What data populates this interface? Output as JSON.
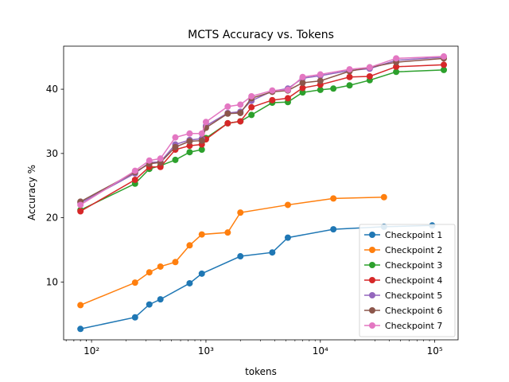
{
  "chart_data": {
    "type": "line",
    "title": "MCTS Accuracy vs. Tokens",
    "xlabel": "tokens",
    "ylabel": "Accuracy %",
    "xscale": "log",
    "xlim": [
      57,
      160000
    ],
    "ylim": [
      1.0,
      46.7
    ],
    "xticks": [
      {
        "value": 100,
        "label": "10²"
      },
      {
        "value": 1000,
        "label": "10³"
      },
      {
        "value": 10000,
        "label": "10⁴"
      },
      {
        "value": 100000,
        "label": "10⁵"
      }
    ],
    "yticks": [
      10,
      20,
      30,
      40
    ],
    "legend_position": "lower-right",
    "grid": false,
    "series": [
      {
        "name": "Checkpoint 1",
        "color": "#1f77b4",
        "points": [
          [
            80,
            2.7
          ],
          [
            240,
            4.5
          ],
          [
            320,
            6.5
          ],
          [
            400,
            7.3
          ],
          [
            720,
            9.8
          ],
          [
            920,
            11.3
          ],
          [
            2000,
            14.0
          ],
          [
            3800,
            14.6
          ],
          [
            5200,
            16.9
          ],
          [
            13000,
            18.2
          ],
          [
            36000,
            18.6
          ],
          [
            95000,
            18.8
          ]
        ]
      },
      {
        "name": "Checkpoint 2",
        "color": "#ff7f0e",
        "points": [
          [
            80,
            6.4
          ],
          [
            240,
            9.9
          ],
          [
            320,
            11.5
          ],
          [
            400,
            12.4
          ],
          [
            540,
            13.1
          ],
          [
            720,
            15.7
          ],
          [
            920,
            17.4
          ],
          [
            1550,
            17.7
          ],
          [
            2000,
            20.8
          ],
          [
            5200,
            22.0
          ],
          [
            13000,
            23.0
          ],
          [
            36000,
            23.2
          ]
        ]
      },
      {
        "name": "Checkpoint 3",
        "color": "#2ca02c",
        "points": [
          [
            80,
            21.2
          ],
          [
            240,
            25.3
          ],
          [
            320,
            27.6
          ],
          [
            400,
            28.1
          ],
          [
            540,
            29.0
          ],
          [
            720,
            30.2
          ],
          [
            920,
            30.6
          ],
          [
            1000,
            32.4
          ],
          [
            1550,
            34.7
          ],
          [
            2000,
            35.0
          ],
          [
            2500,
            36.0
          ],
          [
            3800,
            37.9
          ],
          [
            5200,
            38.0
          ],
          [
            7000,
            39.5
          ],
          [
            10000,
            39.9
          ],
          [
            13000,
            40.1
          ],
          [
            18000,
            40.6
          ],
          [
            27000,
            41.4
          ],
          [
            46000,
            42.7
          ],
          [
            120000,
            43.0
          ]
        ]
      },
      {
        "name": "Checkpoint 4",
        "color": "#d62728",
        "points": [
          [
            80,
            21.0
          ],
          [
            240,
            25.9
          ],
          [
            320,
            27.9
          ],
          [
            400,
            27.9
          ],
          [
            540,
            30.6
          ],
          [
            720,
            31.2
          ],
          [
            920,
            31.4
          ],
          [
            1000,
            32.2
          ],
          [
            1550,
            34.7
          ],
          [
            2000,
            35.0
          ],
          [
            2500,
            37.2
          ],
          [
            3800,
            38.3
          ],
          [
            5200,
            38.6
          ],
          [
            7000,
            40.2
          ],
          [
            10000,
            40.7
          ],
          [
            18000,
            41.9
          ],
          [
            27000,
            42.0
          ],
          [
            46000,
            43.5
          ],
          [
            120000,
            43.8
          ]
        ]
      },
      {
        "name": "Checkpoint 5",
        "color": "#9467bd",
        "points": [
          [
            80,
            22.3
          ],
          [
            240,
            26.9
          ],
          [
            320,
            28.6
          ],
          [
            400,
            28.7
          ],
          [
            540,
            31.4
          ],
          [
            720,
            32.1
          ],
          [
            920,
            32.3
          ],
          [
            1000,
            34.3
          ],
          [
            1550,
            36.3
          ],
          [
            2000,
            36.5
          ],
          [
            2500,
            38.2
          ],
          [
            3800,
            39.7
          ],
          [
            5200,
            40.1
          ],
          [
            7000,
            41.7
          ],
          [
            10000,
            42.1
          ],
          [
            18000,
            42.9
          ],
          [
            27000,
            43.2
          ],
          [
            46000,
            44.5
          ],
          [
            120000,
            45.0
          ]
        ]
      },
      {
        "name": "Checkpoint 6",
        "color": "#8c564b",
        "points": [
          [
            80,
            22.5
          ],
          [
            240,
            27.1
          ],
          [
            320,
            28.4
          ],
          [
            400,
            28.6
          ],
          [
            540,
            31.0
          ],
          [
            720,
            31.9
          ],
          [
            920,
            32.0
          ],
          [
            1000,
            34.0
          ],
          [
            1550,
            36.2
          ],
          [
            2000,
            36.3
          ],
          [
            2500,
            38.6
          ],
          [
            3800,
            39.6
          ],
          [
            5200,
            39.8
          ],
          [
            7000,
            41.0
          ],
          [
            10000,
            41.3
          ],
          [
            18000,
            42.8
          ],
          [
            27000,
            43.4
          ],
          [
            46000,
            44.2
          ],
          [
            120000,
            44.8
          ]
        ]
      },
      {
        "name": "Checkpoint 7",
        "color": "#e377c2",
        "points": [
          [
            80,
            22.0
          ],
          [
            240,
            27.3
          ],
          [
            320,
            28.9
          ],
          [
            400,
            29.2
          ],
          [
            540,
            32.5
          ],
          [
            720,
            33.1
          ],
          [
            920,
            33.1
          ],
          [
            1000,
            34.9
          ],
          [
            1550,
            37.3
          ],
          [
            2000,
            37.6
          ],
          [
            2500,
            38.9
          ],
          [
            3800,
            39.8
          ],
          [
            5200,
            39.9
          ],
          [
            7000,
            41.9
          ],
          [
            10000,
            42.3
          ],
          [
            18000,
            43.1
          ],
          [
            27000,
            43.4
          ],
          [
            46000,
            44.8
          ],
          [
            120000,
            45.1
          ]
        ]
      }
    ]
  }
}
